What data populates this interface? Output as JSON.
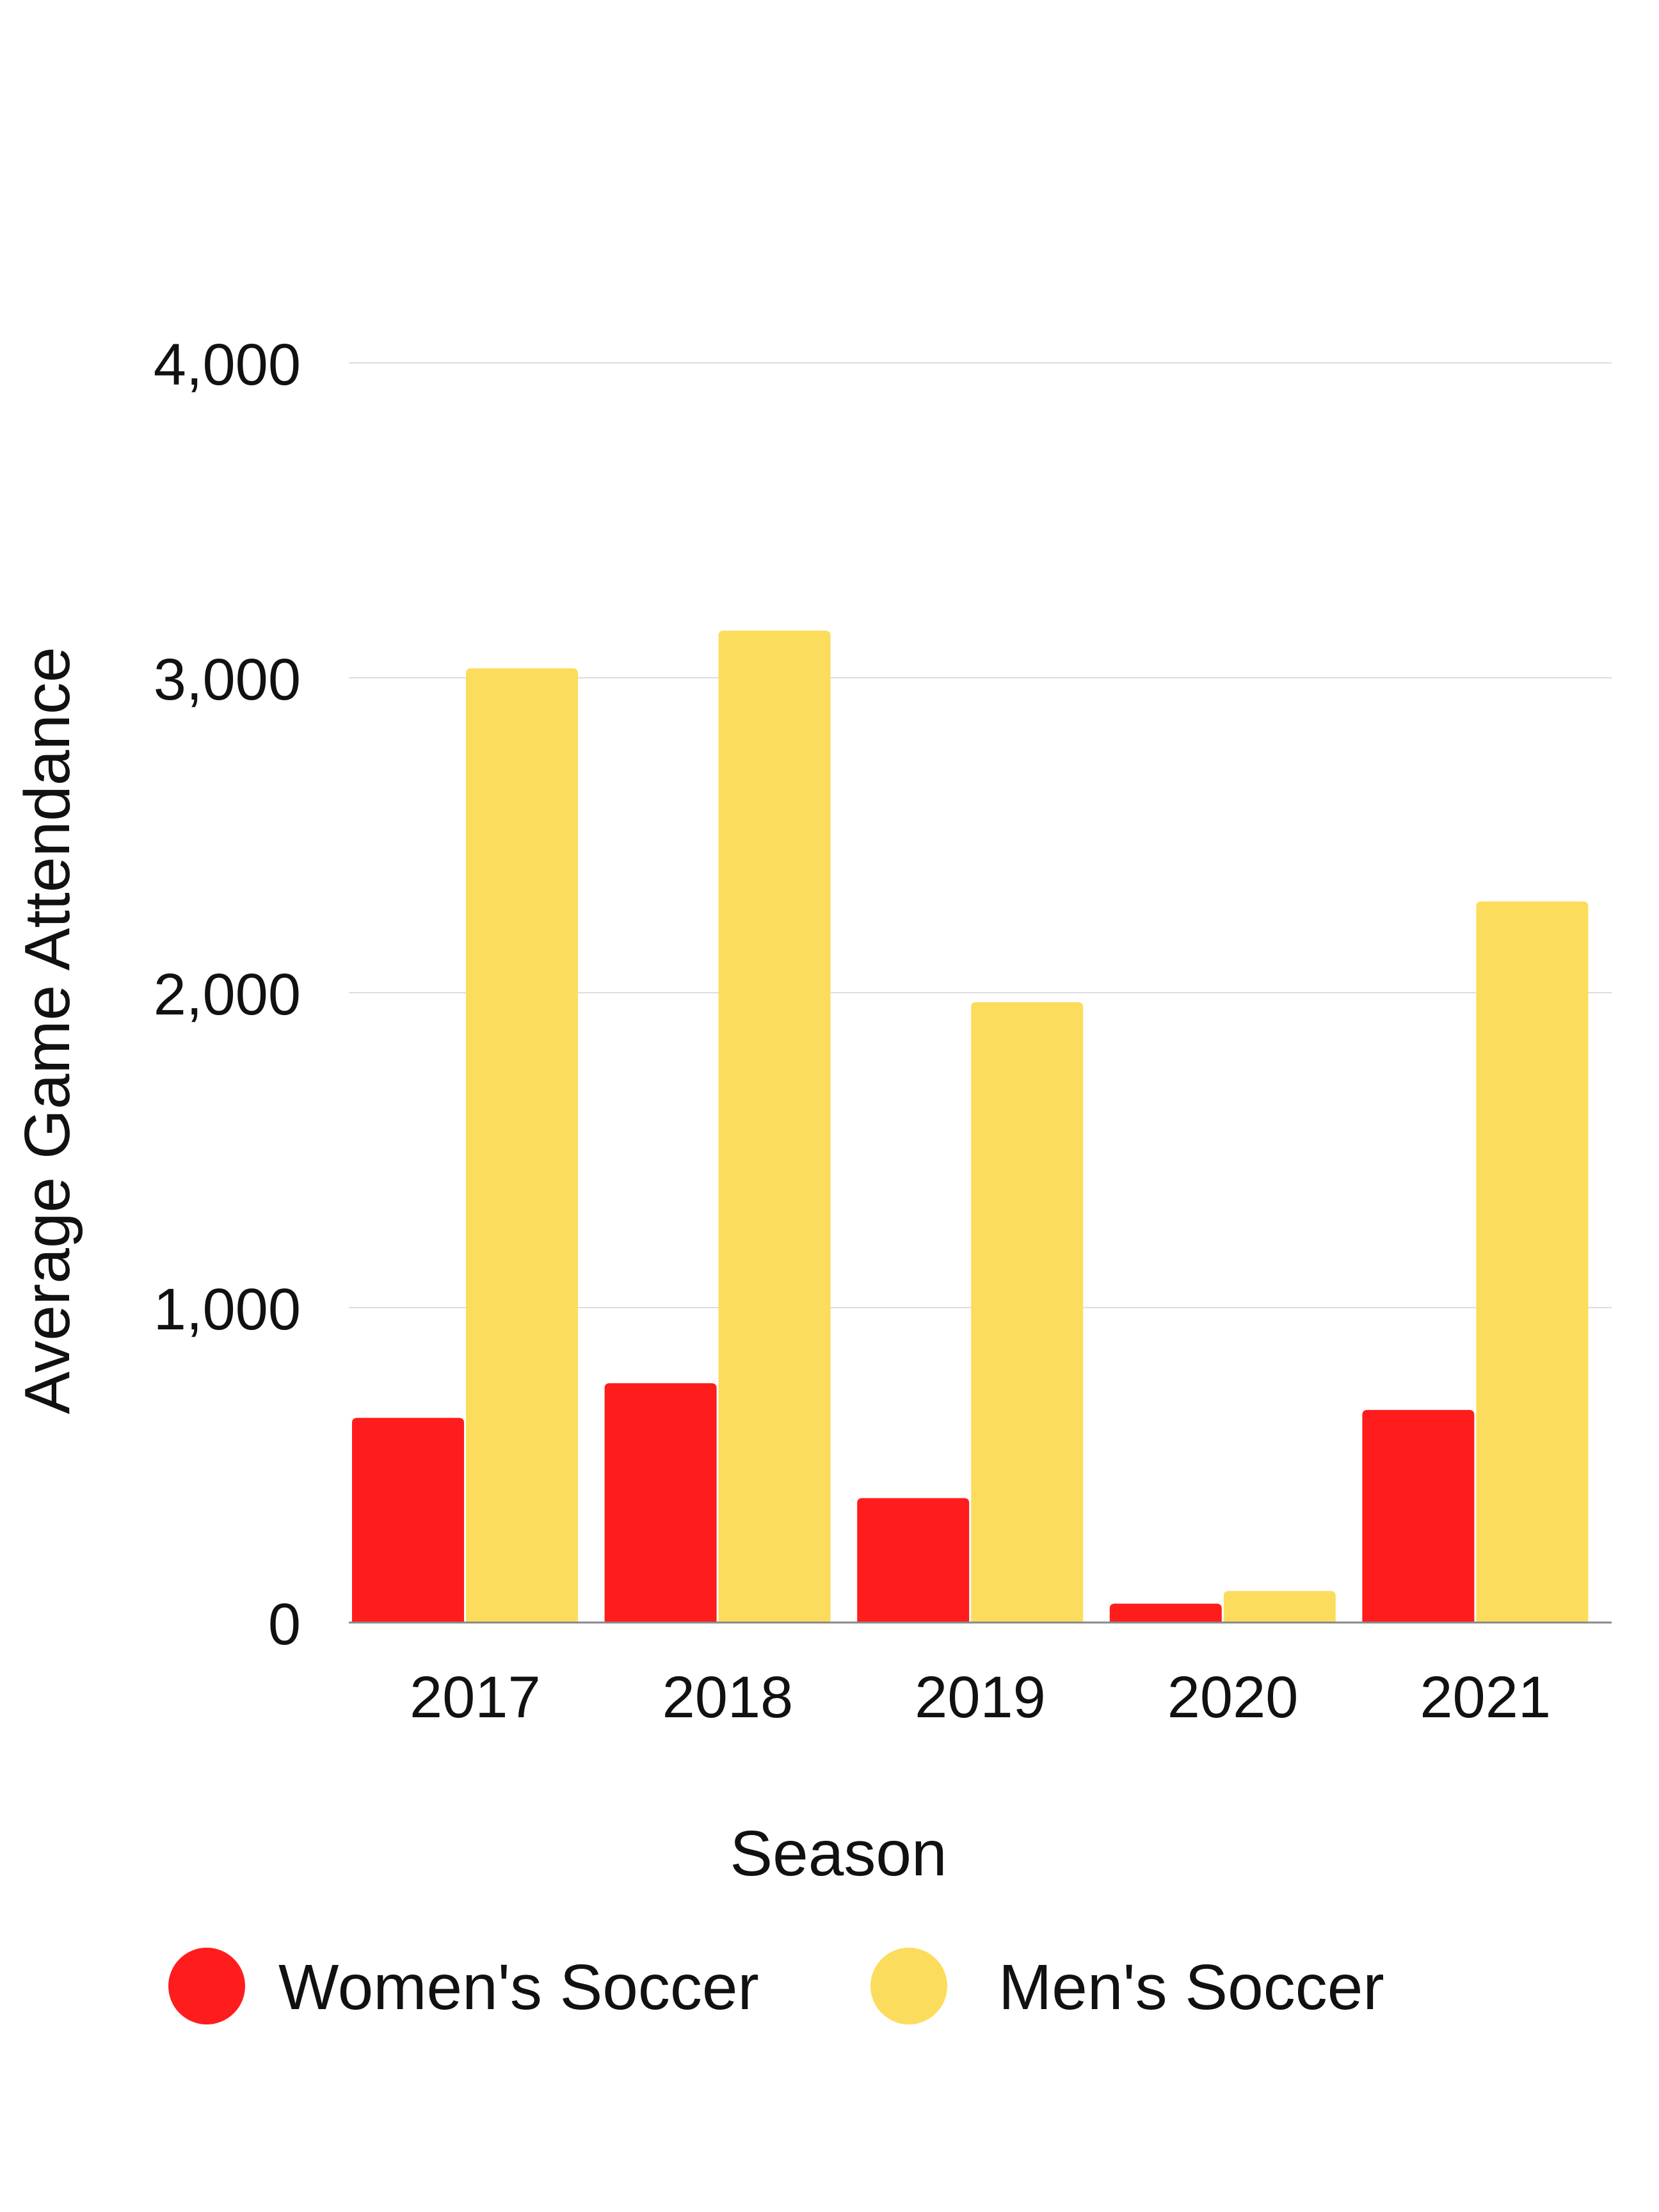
{
  "chart_data": {
    "type": "bar",
    "title": "",
    "xlabel": "Season",
    "ylabel": "Average Game Attendance",
    "categories": [
      "2017",
      "2018",
      "2019",
      "2020",
      "2021"
    ],
    "series": [
      {
        "name": "Women's Soccer",
        "color": "#FF1C1C",
        "values": [
          650,
          760,
          395,
          60,
          675
        ]
      },
      {
        "name": "Men's Soccer",
        "color": "#FCDC5C",
        "values": [
          3030,
          3150,
          1970,
          100,
          2290
        ]
      }
    ],
    "ylim": [
      0,
      4000
    ],
    "yticks": [
      0,
      1000,
      2000,
      3000,
      4000
    ],
    "ytick_labels": [
      "0",
      "1,000",
      "2,000",
      "3,000",
      "4,000"
    ],
    "grid": true,
    "legend_position": "bottom"
  }
}
